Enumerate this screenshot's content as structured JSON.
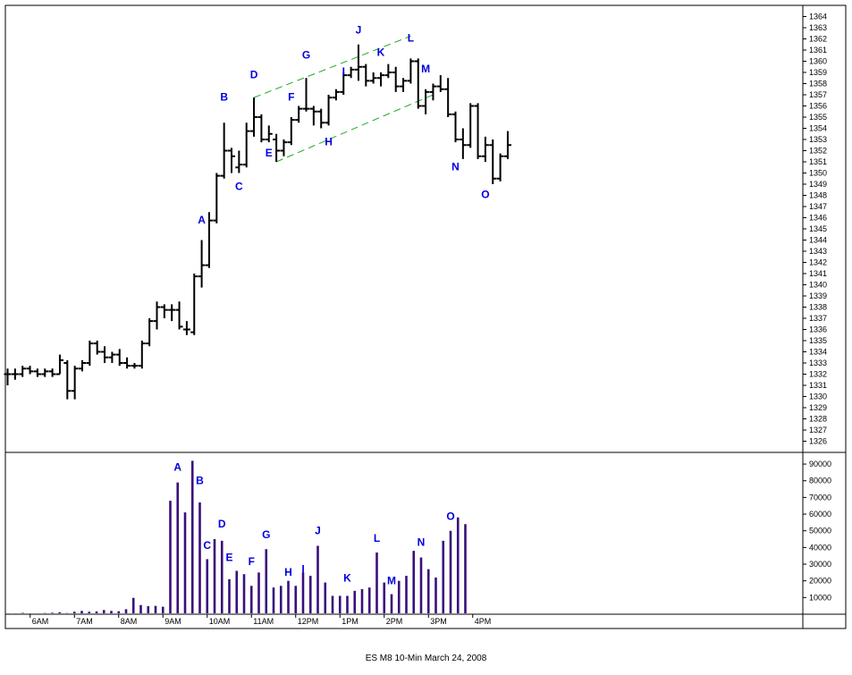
{
  "caption": "ES M8 10-Min March 24, 2008",
  "colors": {
    "price_bar": "#000000",
    "volume_bar": "#3a0f7a",
    "channel": "#22aa22",
    "label": "#0000dd"
  },
  "chart_data": [
    {
      "type": "ohlc",
      "name": "price",
      "interval_minutes": 10,
      "y_ticks": [
        1326,
        1327,
        1328,
        1329,
        1330,
        1331,
        1332,
        1333,
        1334,
        1335,
        1336,
        1337,
        1338,
        1339,
        1340,
        1341,
        1342,
        1343,
        1344,
        1345,
        1346,
        1347,
        1348,
        1349,
        1350,
        1351,
        1352,
        1353,
        1354,
        1355,
        1356,
        1357,
        1358,
        1359,
        1360,
        1361,
        1362,
        1363,
        1364
      ],
      "ylim": [
        1325,
        1365
      ],
      "bars": [
        {
          "t": "5:00",
          "o": 1332,
          "h": 1332.5,
          "l": 1331,
          "c": 1332
        },
        {
          "t": "5:10",
          "o": 1332,
          "h": 1332.5,
          "l": 1331.5,
          "c": 1332
        },
        {
          "t": "5:20",
          "o": 1332,
          "h": 1332.75,
          "l": 1331.75,
          "c": 1332.5
        },
        {
          "t": "5:30",
          "o": 1332.5,
          "h": 1332.75,
          "l": 1332,
          "c": 1332.25
        },
        {
          "t": "5:40",
          "o": 1332.25,
          "h": 1332.5,
          "l": 1331.75,
          "c": 1332
        },
        {
          "t": "5:50",
          "o": 1332,
          "h": 1332.5,
          "l": 1331.75,
          "c": 1332.25
        },
        {
          "t": "6:00",
          "o": 1332.25,
          "h": 1332.5,
          "l": 1331.75,
          "c": 1332
        },
        {
          "t": "6:10",
          "o": 1332,
          "h": 1333.75,
          "l": 1332,
          "c": 1333.25
        },
        {
          "t": "6:20",
          "o": 1333,
          "h": 1333.25,
          "l": 1329.75,
          "c": 1330.5
        },
        {
          "t": "6:30",
          "o": 1330.5,
          "h": 1332.75,
          "l": 1329.75,
          "c": 1332.5
        },
        {
          "t": "6:40",
          "o": 1332.5,
          "h": 1333.25,
          "l": 1332.25,
          "c": 1333
        },
        {
          "t": "6:50",
          "o": 1333,
          "h": 1335,
          "l": 1332.75,
          "c": 1334.75
        },
        {
          "t": "7:00",
          "o": 1334.75,
          "h": 1335,
          "l": 1333.75,
          "c": 1334
        },
        {
          "t": "7:10",
          "o": 1334,
          "h": 1334.5,
          "l": 1333,
          "c": 1333.5
        },
        {
          "t": "7:20",
          "o": 1333.5,
          "h": 1334,
          "l": 1333,
          "c": 1333.75
        },
        {
          "t": "7:30",
          "o": 1333.75,
          "h": 1334.25,
          "l": 1332.75,
          "c": 1333
        },
        {
          "t": "7:40",
          "o": 1333,
          "h": 1333.5,
          "l": 1332.5,
          "c": 1332.75
        },
        {
          "t": "7:50",
          "o": 1332.75,
          "h": 1333,
          "l": 1332.5,
          "c": 1332.75
        },
        {
          "t": "8:00",
          "o": 1332.75,
          "h": 1335,
          "l": 1332.5,
          "c": 1334.75
        },
        {
          "t": "8:10",
          "o": 1334.75,
          "h": 1337,
          "l": 1334.5,
          "c": 1336.75
        },
        {
          "t": "8:20",
          "o": 1336.75,
          "h": 1338.5,
          "l": 1336,
          "c": 1338
        },
        {
          "t": "8:30",
          "o": 1338,
          "h": 1338.25,
          "l": 1337,
          "c": 1337.75
        },
        {
          "t": "8:40",
          "o": 1337.75,
          "h": 1338.25,
          "l": 1336.75,
          "c": 1337.75
        },
        {
          "t": "8:50",
          "o": 1337.75,
          "h": 1338.5,
          "l": 1336,
          "c": 1336.25
        },
        {
          "t": "9:00",
          "o": 1336,
          "h": 1336.75,
          "l": 1335.5,
          "c": 1336
        },
        {
          "t": "9:10",
          "o": 1335.75,
          "h": 1341,
          "l": 1335.5,
          "c": 1340.75
        },
        {
          "t": "9:20",
          "o": 1340.75,
          "h": 1344,
          "l": 1339.75,
          "c": 1341.75
        },
        {
          "t": "9:30",
          "o": 1341.75,
          "h": 1346.5,
          "l": 1341.5,
          "c": 1345.75
        },
        {
          "t": "9:40",
          "o": 1345.75,
          "h": 1350,
          "l": 1345.5,
          "c": 1349.75
        },
        {
          "t": "9:50",
          "o": 1349.75,
          "h": 1354.5,
          "l": 1349.5,
          "c": 1352
        },
        {
          "t": "10:00",
          "o": 1352,
          "h": 1352.25,
          "l": 1350,
          "c": 1351.5
        },
        {
          "t": "10:10",
          "o": 1350.5,
          "h": 1352,
          "l": 1350,
          "c": 1350.75
        },
        {
          "t": "10:20",
          "o": 1350.75,
          "h": 1354.5,
          "l": 1350.5,
          "c": 1353.75
        },
        {
          "t": "10:30",
          "o": 1353.75,
          "h": 1356.75,
          "l": 1353.25,
          "c": 1355
        },
        {
          "t": "10:40",
          "o": 1355,
          "h": 1355.25,
          "l": 1352.75,
          "c": 1353
        },
        {
          "t": "10:50",
          "o": 1353,
          "h": 1354.25,
          "l": 1352.75,
          "c": 1353.5
        },
        {
          "t": "11:00",
          "o": 1353,
          "h": 1353.5,
          "l": 1351,
          "c": 1352
        },
        {
          "t": "11:10",
          "o": 1352,
          "h": 1353,
          "l": 1351.5,
          "c": 1352.75
        },
        {
          "t": "11:20",
          "o": 1352.75,
          "h": 1355,
          "l": 1352.5,
          "c": 1354.75
        },
        {
          "t": "11:30",
          "o": 1354.75,
          "h": 1356,
          "l": 1354.5,
          "c": 1355.75
        },
        {
          "t": "11:40",
          "o": 1355.75,
          "h": 1358.5,
          "l": 1355.5,
          "c": 1355.75
        },
        {
          "t": "11:50",
          "o": 1355.75,
          "h": 1356,
          "l": 1354.25,
          "c": 1355.5
        },
        {
          "t": "12:00",
          "o": 1355.5,
          "h": 1355.75,
          "l": 1354,
          "c": 1354.5
        },
        {
          "t": "12:10",
          "o": 1354.5,
          "h": 1357,
          "l": 1354.25,
          "c": 1356.75
        },
        {
          "t": "12:20",
          "o": 1356.75,
          "h": 1357.5,
          "l": 1356.5,
          "c": 1357.25
        },
        {
          "t": "12:30",
          "o": 1357.25,
          "h": 1359,
          "l": 1357,
          "c": 1358.75
        },
        {
          "t": "12:40",
          "o": 1358.75,
          "h": 1359.5,
          "l": 1358.5,
          "c": 1359.25
        },
        {
          "t": "12:50",
          "o": 1359.25,
          "h": 1361.5,
          "l": 1358.25,
          "c": 1359.5
        },
        {
          "t": "13:00",
          "o": 1359.5,
          "h": 1359.75,
          "l": 1357.75,
          "c": 1358.25
        },
        {
          "t": "13:10",
          "o": 1358.25,
          "h": 1359,
          "l": 1358,
          "c": 1358.5
        },
        {
          "t": "13:20",
          "o": 1358.5,
          "h": 1359,
          "l": 1357.75,
          "c": 1358.75
        },
        {
          "t": "13:30",
          "o": 1358.75,
          "h": 1359.75,
          "l": 1358.5,
          "c": 1359
        },
        {
          "t": "13:40",
          "o": 1359,
          "h": 1359.5,
          "l": 1357.25,
          "c": 1357.75
        },
        {
          "t": "13:50",
          "o": 1357.75,
          "h": 1358.5,
          "l": 1357.25,
          "c": 1358.25
        },
        {
          "t": "14:00",
          "o": 1358.25,
          "h": 1360.25,
          "l": 1358,
          "c": 1360
        },
        {
          "t": "14:10",
          "o": 1360,
          "h": 1360.25,
          "l": 1355.75,
          "c": 1356
        },
        {
          "t": "14:20",
          "o": 1356,
          "h": 1357.5,
          "l": 1355.25,
          "c": 1357.25
        },
        {
          "t": "14:30",
          "o": 1357.25,
          "h": 1358,
          "l": 1356.5,
          "c": 1357.75
        },
        {
          "t": "14:40",
          "o": 1357.75,
          "h": 1358.75,
          "l": 1357.25,
          "c": 1357.5
        },
        {
          "t": "14:50",
          "o": 1357.5,
          "h": 1358.5,
          "l": 1355,
          "c": 1355.25
        },
        {
          "t": "15:00",
          "o": 1355.25,
          "h": 1355.5,
          "l": 1352.75,
          "c": 1353
        },
        {
          "t": "15:10",
          "o": 1353,
          "h": 1354,
          "l": 1351.25,
          "c": 1352.5
        },
        {
          "t": "15:20",
          "o": 1352.5,
          "h": 1356.25,
          "l": 1352.25,
          "c": 1356
        },
        {
          "t": "15:30",
          "o": 1356,
          "h": 1356.25,
          "l": 1351.25,
          "c": 1351.5
        },
        {
          "t": "15:40",
          "o": 1351.5,
          "h": 1353.25,
          "l": 1351,
          "c": 1352.5
        },
        {
          "t": "15:50",
          "o": 1352.5,
          "h": 1353,
          "l": 1349,
          "c": 1349.5
        },
        {
          "t": "16:00",
          "o": 1349.5,
          "h": 1351.75,
          "l": 1349.25,
          "c": 1351.5
        },
        {
          "t": "16:10",
          "o": 1351.5,
          "h": 1353.75,
          "l": 1351.25,
          "c": 1352.5
        }
      ],
      "annotations": [
        {
          "text": "A",
          "bar": 26,
          "at": 1345.5
        },
        {
          "text": "B",
          "bar": 29,
          "at": 1356.5
        },
        {
          "text": "C",
          "bar": 31,
          "at": 1348.5
        },
        {
          "text": "D",
          "bar": 33,
          "at": 1358.5
        },
        {
          "text": "E",
          "bar": 35,
          "at": 1351.5
        },
        {
          "text": "F",
          "bar": 38,
          "at": 1356.5
        },
        {
          "text": "G",
          "bar": 40,
          "at": 1360.25
        },
        {
          "text": "H",
          "bar": 43,
          "at": 1352.5
        },
        {
          "text": "I",
          "bar": 45,
          "at": 1358.75
        },
        {
          "text": "J",
          "bar": 47,
          "at": 1362.5
        },
        {
          "text": "K",
          "bar": 50,
          "at": 1360.5
        },
        {
          "text": "L",
          "bar": 54,
          "at": 1361.75
        },
        {
          "text": "M",
          "bar": 56,
          "at": 1359
        },
        {
          "text": "N",
          "bar": 60,
          "at": 1350.25
        },
        {
          "text": "O",
          "bar": 64,
          "at": 1347.75
        }
      ],
      "channel_lines": [
        {
          "from": {
            "bar": 33,
            "price": 1356.75
          },
          "to": {
            "bar": 54,
            "price": 1362.25
          }
        },
        {
          "from": {
            "bar": 36,
            "price": 1351
          },
          "to": {
            "bar": 57,
            "price": 1357
          }
        }
      ]
    },
    {
      "type": "bar",
      "name": "volume",
      "y_ticks": [
        10000,
        20000,
        30000,
        40000,
        50000,
        60000,
        70000,
        80000,
        90000
      ],
      "ylim": [
        0,
        97000
      ],
      "x_tick_labels": [
        "6AM",
        "7AM",
        "8AM",
        "9AM",
        "10AM",
        "11AM",
        "12PM",
        "1PM",
        "2PM",
        "3PM",
        "4PM"
      ],
      "x_tick_bars": [
        3,
        9,
        15,
        21,
        27,
        33,
        39,
        45,
        51,
        57,
        63
      ],
      "values": [
        600,
        500,
        800,
        500,
        600,
        700,
        900,
        1200,
        700,
        1500,
        2000,
        1500,
        1700,
        2500,
        2000,
        1800,
        3000,
        9800,
        5500,
        4800,
        5000,
        4500,
        68000,
        79000,
        61000,
        92000,
        67000,
        33000,
        45000,
        44000,
        21000,
        26000,
        24000,
        17000,
        25000,
        39000,
        16000,
        17000,
        20000,
        17000,
        25000,
        23000,
        41000,
        19000,
        11000,
        11000,
        11000,
        14000,
        15000,
        16000,
        37000,
        19000,
        12000,
        20000,
        23000,
        38000,
        34000,
        27000,
        22000,
        44000,
        50000,
        58000,
        54000
      ],
      "annotations": [
        {
          "text": "A",
          "bar": 23,
          "at": 86000
        },
        {
          "text": "B",
          "bar": 26,
          "at": 78000
        },
        {
          "text": "C",
          "bar": 27,
          "at": 39000
        },
        {
          "text": "D",
          "bar": 29,
          "at": 52000
        },
        {
          "text": "E",
          "bar": 30,
          "at": 32000
        },
        {
          "text": "F",
          "bar": 33,
          "at": 29500
        },
        {
          "text": "G",
          "bar": 35,
          "at": 45500
        },
        {
          "text": "H",
          "bar": 38,
          "at": 23000
        },
        {
          "text": "I",
          "bar": 40,
          "at": 25000
        },
        {
          "text": "J",
          "bar": 42,
          "at": 48000
        },
        {
          "text": "K",
          "bar": 46,
          "at": 19500
        },
        {
          "text": "L",
          "bar": 50,
          "at": 43500
        },
        {
          "text": "M",
          "bar": 52,
          "at": 18000
        },
        {
          "text": "N",
          "bar": 56,
          "at": 41000
        },
        {
          "text": "O",
          "bar": 60,
          "at": 56500
        }
      ]
    }
  ]
}
